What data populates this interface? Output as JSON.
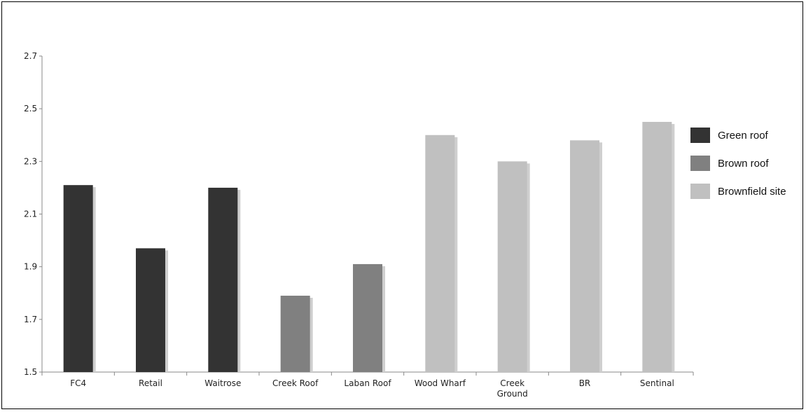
{
  "chart_data": {
    "type": "bar",
    "categories": [
      "FC4",
      "Retail",
      "Waitrose",
      "Creek Roof",
      "Laban Roof",
      "Wood Wharf",
      "Creek Ground",
      "BR",
      "Sentinal"
    ],
    "category_lines": [
      [
        "FC4"
      ],
      [
        "Retail"
      ],
      [
        "Waitrose"
      ],
      [
        "Creek Roof"
      ],
      [
        "Laban Roof"
      ],
      [
        "Wood Wharf"
      ],
      [
        "Creek",
        "Ground"
      ],
      [
        "BR"
      ],
      [
        "Sentinal"
      ]
    ],
    "values": [
      2.21,
      1.97,
      2.2,
      1.79,
      1.91,
      2.4,
      2.3,
      2.38,
      2.45
    ],
    "groups": [
      "Green roof",
      "Green roof",
      "Green roof",
      "Brown roof",
      "Brown roof",
      "Brownfield site",
      "Brownfield site",
      "Brownfield site",
      "Brownfield site"
    ],
    "legend": [
      {
        "name": "Green roof",
        "color": "#333333"
      },
      {
        "name": "Brown roof",
        "color": "#808080"
      },
      {
        "name": "Brownfield site",
        "color": "#c0c0c0"
      }
    ],
    "ylim": [
      1.5,
      2.7
    ],
    "yticks": [
      "1.5",
      "1.7",
      "1.9",
      "2.1",
      "2.3",
      "2.5",
      "2.7"
    ],
    "title": "",
    "xlabel": "",
    "ylabel": "",
    "grid": false,
    "legend_position": "right"
  }
}
